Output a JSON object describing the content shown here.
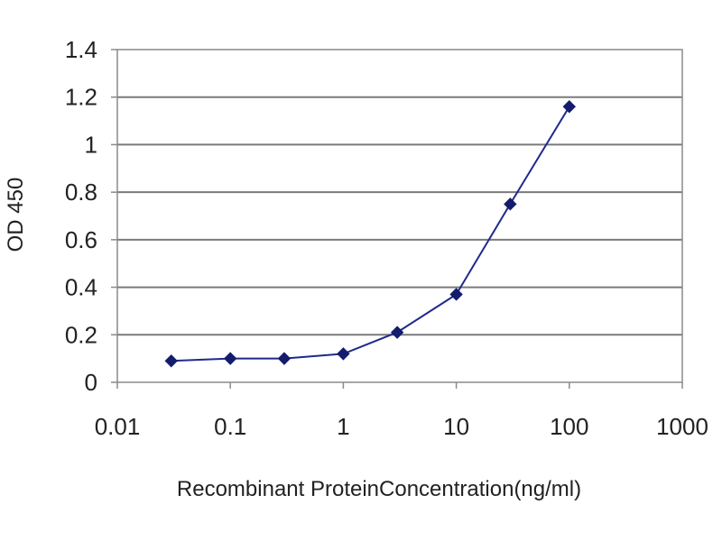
{
  "chart_data": {
    "type": "line",
    "title": "",
    "xlabel": "Recombinant ProteinConcentration(ng/ml)",
    "ylabel": "OD 450",
    "x_scale": "log",
    "xlim": [
      0.01,
      1000
    ],
    "ylim": [
      0,
      1.4
    ],
    "x_ticks": [
      0.01,
      0.1,
      1,
      10,
      100,
      1000
    ],
    "x_tick_labels": [
      "0.01",
      "0.1",
      "1",
      "10",
      "100",
      "1000"
    ],
    "y_ticks": [
      0,
      0.2,
      0.4,
      0.6,
      0.8,
      1,
      1.2,
      1.4
    ],
    "y_tick_labels": [
      "0",
      "0.2",
      "0.4",
      "0.6",
      "0.8",
      "1",
      "1.2",
      "1.4"
    ],
    "grid": "horizontal",
    "legend": "none",
    "series": [
      {
        "x": [
          0.03,
          0.1,
          0.3,
          1,
          3,
          10,
          30,
          100
        ],
        "y": [
          0.09,
          0.1,
          0.1,
          0.12,
          0.21,
          0.37,
          0.75,
          1.16
        ],
        "color": "#1f2a8a",
        "marker": "diamond"
      }
    ],
    "colors": {
      "line": "#1f2a8a",
      "marker": "#141c6e",
      "grid": "#7a7a7a",
      "frame": "#8a8a8a"
    }
  }
}
